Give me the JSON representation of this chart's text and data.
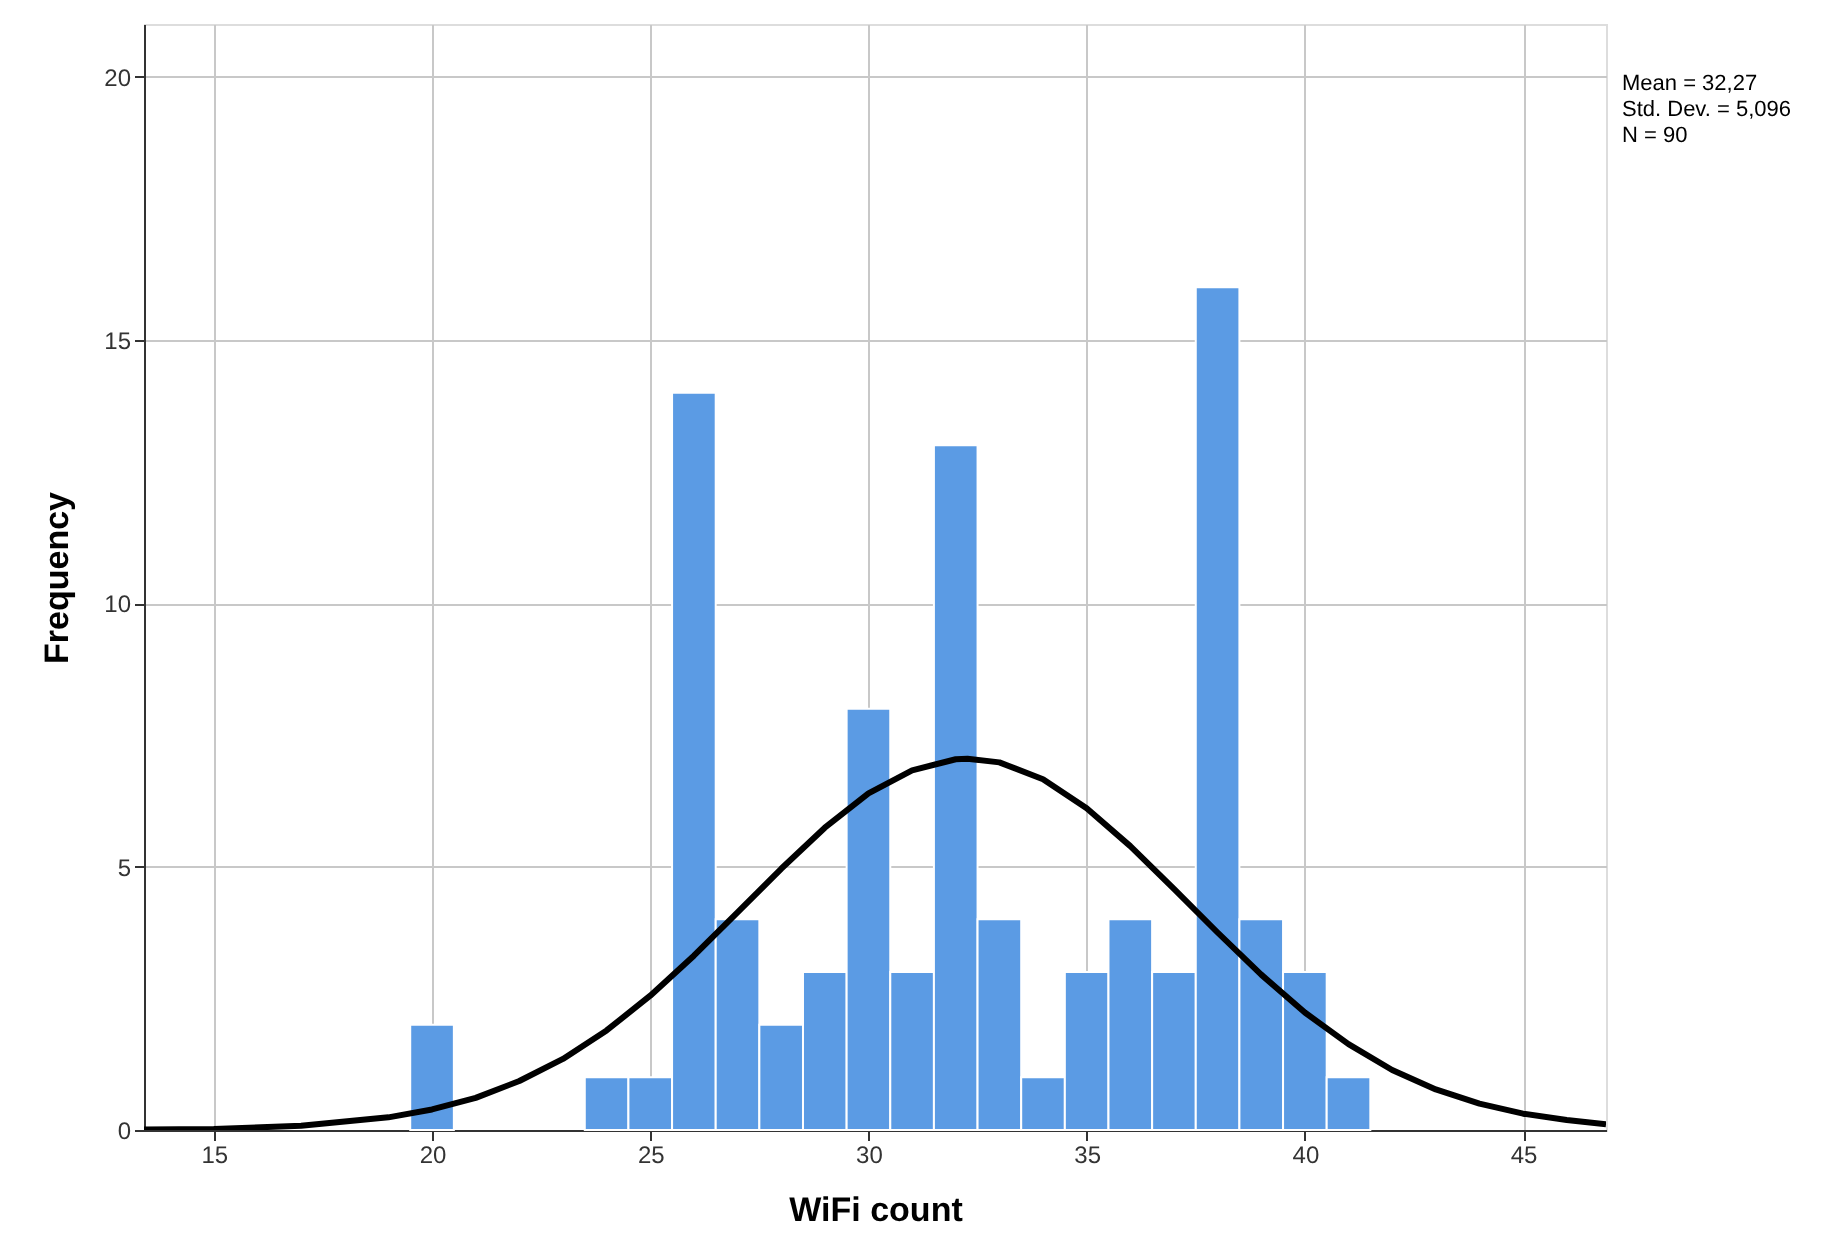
{
  "chart_data": {
    "type": "histogram",
    "xlabel": "WiFi count",
    "ylabel": "Frequency",
    "bins": [
      19.5,
      20.5,
      21.5,
      22.5,
      23.5,
      24.5,
      25.5,
      26.5,
      27.5,
      28.5,
      29.5,
      30.5,
      31.5,
      32.5,
      33.5,
      34.5,
      35.5,
      36.5,
      37.5,
      38.5,
      39.5,
      40.5,
      41.5
    ],
    "values": [
      2,
      0,
      0,
      0,
      1,
      1,
      14,
      4,
      2,
      3,
      8,
      3,
      13,
      4,
      1,
      3,
      4,
      3,
      16,
      4,
      3,
      1
    ],
    "color": "#5b9be4",
    "series": [
      {
        "type": "line",
        "color": "#000000",
        "x": [
          13.4,
          15,
          17,
          19,
          20,
          21,
          22,
          23,
          24,
          25,
          26,
          27,
          28,
          29,
          30,
          31,
          32,
          32.27,
          33,
          34,
          35,
          36,
          37,
          38,
          39,
          40,
          41,
          42,
          43,
          44,
          45,
          46,
          46.9
        ],
        "values": [
          0.01,
          0.02,
          0.08,
          0.24,
          0.39,
          0.61,
          0.93,
          1.35,
          1.89,
          2.55,
          3.31,
          4.13,
          4.96,
          5.74,
          6.39,
          6.83,
          7.04,
          7.05,
          6.98,
          6.66,
          6.11,
          5.39,
          4.58,
          3.75,
          2.95,
          2.23,
          1.63,
          1.14,
          0.77,
          0.5,
          0.31,
          0.19,
          0.11
        ]
      }
    ],
    "xlim": [
      13.4,
      46.9
    ],
    "xticks": [
      15,
      20,
      25,
      30,
      35,
      40,
      45
    ],
    "ylim": [
      0,
      21
    ],
    "yticks": [
      0,
      5,
      10,
      15,
      20
    ],
    "grid": true,
    "annotations": [
      "Mean = 32,27",
      "Std. Dev. = 5,096",
      "N = 90"
    ]
  }
}
